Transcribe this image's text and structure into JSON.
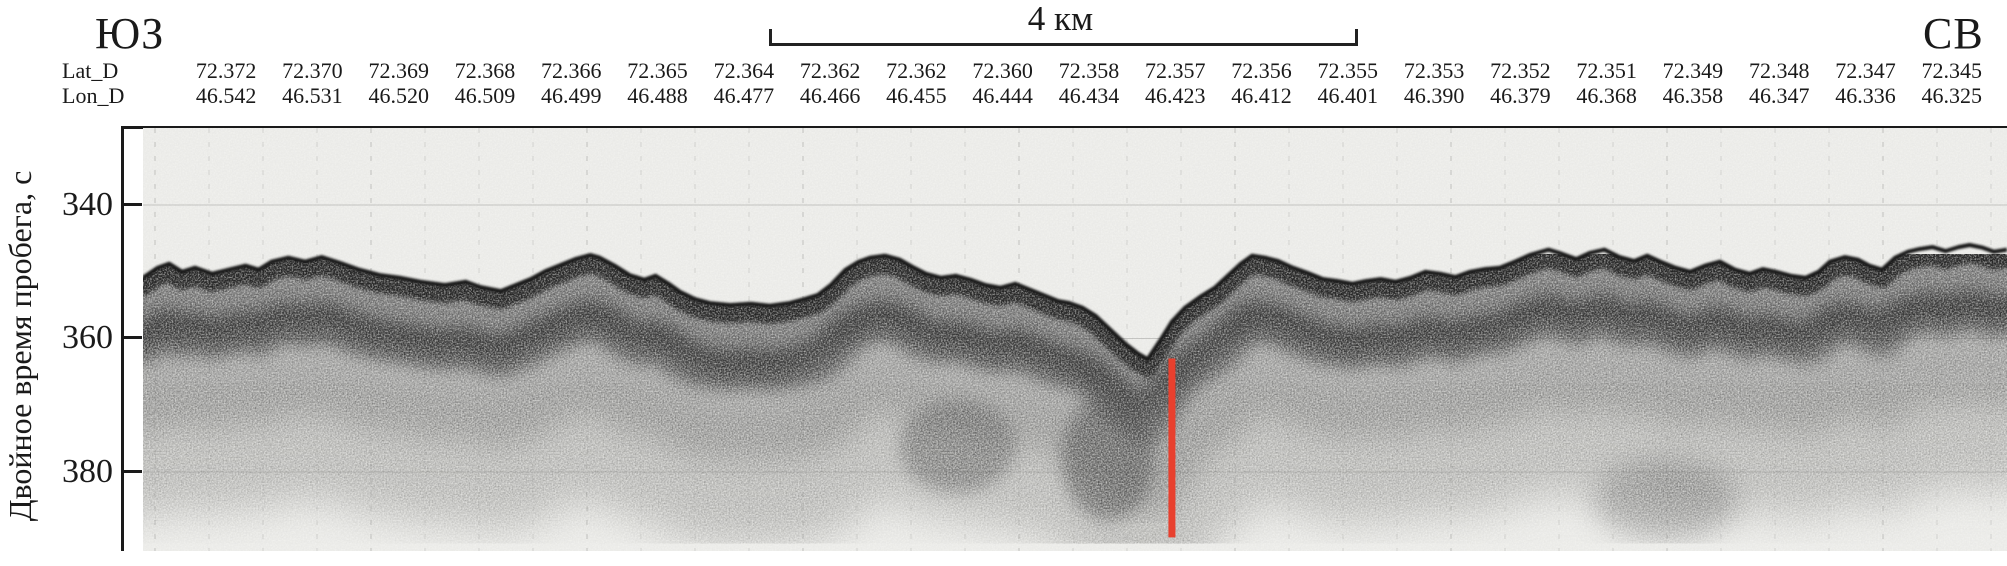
{
  "labels": {
    "corner_left": "ЮЗ",
    "corner_right": "СВ",
    "scale_bar": "4 км",
    "y_axis": "Двойное время пробега, с",
    "lat_row": "Lat_D",
    "lon_row": "Lon_D"
  },
  "coordinates": {
    "lat": [
      "72.372",
      "72.370",
      "72.369",
      "72.368",
      "72.366",
      "72.365",
      "72.364",
      "72.362",
      "72.362",
      "72.360",
      "72.358",
      "72.357",
      "72.356",
      "72.355",
      "72.353",
      "72.352",
      "72.351",
      "72.349",
      "72.348",
      "72.347",
      "72.345"
    ],
    "lon": [
      "46.542",
      "46.531",
      "46.520",
      "46.509",
      "46.499",
      "46.488",
      "46.477",
      "46.466",
      "46.455",
      "46.444",
      "46.434",
      "46.423",
      "46.412",
      "46.401",
      "46.390",
      "46.379",
      "46.368",
      "46.358",
      "46.347",
      "46.336",
      "46.325"
    ]
  },
  "chart_data": {
    "type": "area",
    "title": "",
    "subtitle": "Seismo-acoustic (sub-bottom profiler) record, SW to NE",
    "xlabel_left": "ЮЗ",
    "xlabel_right": "СВ",
    "ylabel": "Двойное время пробега, с",
    "y_ticks": [
      340,
      360,
      380
    ],
    "ylim": [
      328,
      391
    ],
    "y_inverted": true,
    "grid": "faint horizontal at ticks, faint vertical trace lines",
    "scale_bar": {
      "label": "4 км",
      "length_km": 4
    },
    "x_axis_rows": {
      "lat_label": "Lat_D",
      "lon_label": "Lon_D",
      "lat": [
        72.372,
        72.37,
        72.369,
        72.368,
        72.366,
        72.365,
        72.364,
        72.362,
        72.362,
        72.36,
        72.358,
        72.357,
        72.356,
        72.355,
        72.353,
        72.352,
        72.351,
        72.349,
        72.348,
        72.347,
        72.345
      ],
      "lon": [
        46.542,
        46.531,
        46.52,
        46.509,
        46.499,
        46.488,
        46.477,
        46.466,
        46.455,
        46.444,
        46.434,
        46.423,
        46.412,
        46.401,
        46.39,
        46.379,
        46.368,
        46.358,
        46.347,
        46.336,
        46.325
      ]
    },
    "seafloor_line": {
      "x_unit": "fraction of profile length (SW→NE)",
      "y_unit": "two-way travel time, s",
      "points": [
        [
          0.0,
          350.9
        ],
        [
          0.008,
          349.4
        ],
        [
          0.014,
          348.8
        ],
        [
          0.021,
          350.0
        ],
        [
          0.028,
          349.4
        ],
        [
          0.037,
          350.3
        ],
        [
          0.046,
          349.7
        ],
        [
          0.055,
          349.1
        ],
        [
          0.062,
          349.7
        ],
        [
          0.069,
          348.5
        ],
        [
          0.078,
          347.9
        ],
        [
          0.087,
          348.5
        ],
        [
          0.096,
          347.8
        ],
        [
          0.106,
          348.7
        ],
        [
          0.116,
          349.7
        ],
        [
          0.127,
          350.5
        ],
        [
          0.138,
          350.9
        ],
        [
          0.149,
          351.5
        ],
        [
          0.162,
          352.0
        ],
        [
          0.173,
          351.5
        ],
        [
          0.181,
          352.3
        ],
        [
          0.192,
          352.9
        ],
        [
          0.2,
          352.0
        ],
        [
          0.208,
          351.1
        ],
        [
          0.216,
          349.9
        ],
        [
          0.224,
          349.0
        ],
        [
          0.232,
          348.1
        ],
        [
          0.24,
          347.5
        ],
        [
          0.245,
          347.9
        ],
        [
          0.253,
          349.1
        ],
        [
          0.261,
          350.5
        ],
        [
          0.269,
          351.2
        ],
        [
          0.275,
          350.6
        ],
        [
          0.282,
          351.8
        ],
        [
          0.288,
          353.0
        ],
        [
          0.296,
          354.1
        ],
        [
          0.304,
          354.7
        ],
        [
          0.315,
          355.0
        ],
        [
          0.326,
          354.8
        ],
        [
          0.336,
          355.1
        ],
        [
          0.347,
          354.7
        ],
        [
          0.355,
          354.1
        ],
        [
          0.362,
          353.5
        ],
        [
          0.369,
          352.0
        ],
        [
          0.377,
          349.7
        ],
        [
          0.384,
          348.5
        ],
        [
          0.39,
          347.9
        ],
        [
          0.398,
          347.6
        ],
        [
          0.406,
          348.2
        ],
        [
          0.413,
          349.3
        ],
        [
          0.42,
          350.3
        ],
        [
          0.428,
          350.9
        ],
        [
          0.436,
          350.6
        ],
        [
          0.444,
          351.2
        ],
        [
          0.452,
          352.0
        ],
        [
          0.46,
          352.4
        ],
        [
          0.468,
          351.8
        ],
        [
          0.476,
          352.7
        ],
        [
          0.484,
          353.6
        ],
        [
          0.491,
          354.4
        ],
        [
          0.497,
          354.7
        ],
        [
          0.504,
          355.4
        ],
        [
          0.511,
          356.6
        ],
        [
          0.519,
          358.7
        ],
        [
          0.527,
          360.8
        ],
        [
          0.534,
          362.3
        ],
        [
          0.539,
          363.1
        ],
        [
          0.546,
          360.2
        ],
        [
          0.552,
          357.5
        ],
        [
          0.559,
          355.4
        ],
        [
          0.567,
          353.8
        ],
        [
          0.575,
          352.4
        ],
        [
          0.582,
          350.6
        ],
        [
          0.589,
          348.8
        ],
        [
          0.595,
          347.6
        ],
        [
          0.602,
          347.9
        ],
        [
          0.609,
          348.4
        ],
        [
          0.616,
          349.3
        ],
        [
          0.625,
          350.2
        ],
        [
          0.633,
          351.1
        ],
        [
          0.641,
          351.4
        ],
        [
          0.649,
          351.8
        ],
        [
          0.656,
          351.4
        ],
        [
          0.664,
          351.1
        ],
        [
          0.672,
          351.5
        ],
        [
          0.68,
          350.9
        ],
        [
          0.688,
          350.0
        ],
        [
          0.696,
          350.3
        ],
        [
          0.704,
          350.8
        ],
        [
          0.712,
          350.0
        ],
        [
          0.72,
          349.6
        ],
        [
          0.728,
          349.4
        ],
        [
          0.736,
          348.5
        ],
        [
          0.744,
          347.5
        ],
        [
          0.754,
          346.7
        ],
        [
          0.761,
          347.3
        ],
        [
          0.769,
          348.1
        ],
        [
          0.776,
          347.2
        ],
        [
          0.784,
          346.7
        ],
        [
          0.792,
          347.8
        ],
        [
          0.8,
          348.4
        ],
        [
          0.807,
          347.6
        ],
        [
          0.814,
          348.5
        ],
        [
          0.822,
          349.4
        ],
        [
          0.83,
          350.0
        ],
        [
          0.838,
          349.1
        ],
        [
          0.846,
          348.5
        ],
        [
          0.854,
          349.7
        ],
        [
          0.862,
          350.3
        ],
        [
          0.869,
          349.6
        ],
        [
          0.876,
          350.0
        ],
        [
          0.884,
          350.6
        ],
        [
          0.892,
          350.9
        ],
        [
          0.899,
          350.0
        ],
        [
          0.905,
          348.5
        ],
        [
          0.913,
          347.8
        ],
        [
          0.92,
          348.2
        ],
        [
          0.926,
          349.1
        ],
        [
          0.933,
          349.7
        ],
        [
          0.94,
          347.9
        ],
        [
          0.947,
          347.0
        ],
        [
          0.953,
          346.6
        ],
        [
          0.96,
          346.3
        ],
        [
          0.967,
          346.9
        ],
        [
          0.974,
          346.3
        ],
        [
          0.98,
          346.0
        ],
        [
          0.987,
          346.4
        ],
        [
          0.993,
          347.0
        ],
        [
          1.0,
          346.7
        ]
      ]
    },
    "marker_line": {
      "x_fraction": 0.552,
      "t_top_s": 363.0,
      "t_bottom_s": 389.8,
      "color": "#e8402e"
    },
    "tick_labels": [
      "340",
      "360",
      "380"
    ],
    "colors": {
      "plot_background": "#f5f5f2",
      "seafloor_dark": "#161616",
      "marker_red": "#e8402e"
    }
  }
}
